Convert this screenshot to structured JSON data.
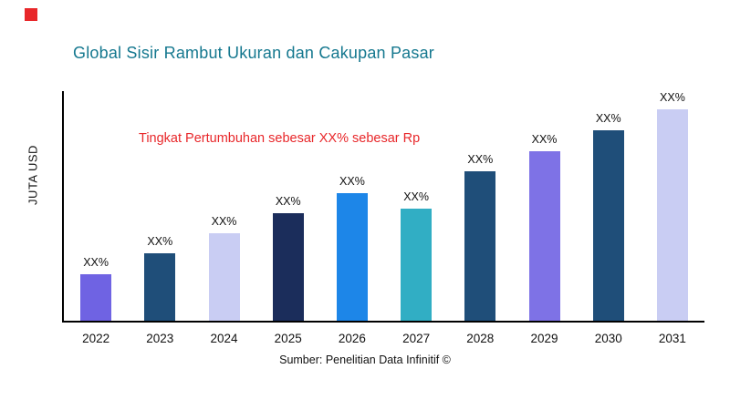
{
  "page": {
    "title": "Global Sisir Rambut Ukuran dan Cakupan Pasar",
    "annotation": "Tingkat Pertumbuhan sebesar XX% sebesar Rp",
    "ylabel": "JUTA USD",
    "source": "Sumber: Penelitian Data Infinitif ©"
  },
  "colors": {
    "title": "#15788F",
    "annotation": "#E8272A",
    "logo": "#E8272A",
    "axis": "#000000",
    "background": "#FFFFFF"
  },
  "chart_data": {
    "type": "bar",
    "title": "Global Sisir Rambut Ukuran dan Cakupan Pasar",
    "xlabel": "",
    "ylabel": "JUTA USD",
    "ylim": [
      0,
      255
    ],
    "grid": false,
    "legend": false,
    "categories": [
      "2022",
      "2023",
      "2024",
      "2025",
      "2026",
      "2027",
      "2028",
      "2029",
      "2030",
      "2031"
    ],
    "values": [
      52,
      75,
      97,
      119,
      142,
      124,
      166,
      188,
      211,
      235
    ],
    "bar_labels": [
      "XX%",
      "XX%",
      "XX%",
      "XX%",
      "XX%",
      "XX%",
      "XX%",
      "XX%",
      "XX%",
      "XX%"
    ],
    "bar_colors": [
      "#6F63E3",
      "#1F4E79",
      "#C9CDF3",
      "#1B2D5B",
      "#1D86E8",
      "#31AEC4",
      "#1F4E79",
      "#7E72E6",
      "#1F4E79",
      "#C9CDF3"
    ],
    "annotation": "Tingkat Pertumbuhan sebesar XX% sebesar Rp",
    "source": "Sumber: Penelitian Data Infinitif ©"
  }
}
